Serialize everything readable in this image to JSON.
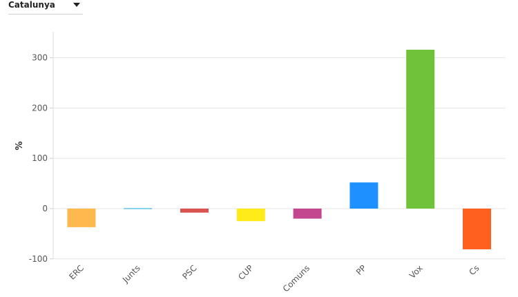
{
  "header": {
    "region_selected": "Catalunya",
    "dropdown_icon": "caret-down-icon"
  },
  "chart_data": {
    "type": "bar",
    "title": "",
    "xlabel": "",
    "ylabel": "%",
    "ylim": [
      -100,
      350
    ],
    "yticks": [
      -100,
      0,
      100,
      200,
      300
    ],
    "grid": true,
    "legend": "none",
    "categories": [
      "ERC",
      "Junts",
      "PSC",
      "CUP",
      "Comuns",
      "PP",
      "Vox",
      "Cs"
    ],
    "values": [
      -37,
      -1,
      -8,
      -25,
      -20,
      52,
      316,
      -81
    ],
    "colors": [
      "#FDB94D",
      "#5BC4E8",
      "#D9534F",
      "#FFEB1A",
      "#C2478E",
      "#1E90FF",
      "#70C23A",
      "#FF6020"
    ]
  }
}
